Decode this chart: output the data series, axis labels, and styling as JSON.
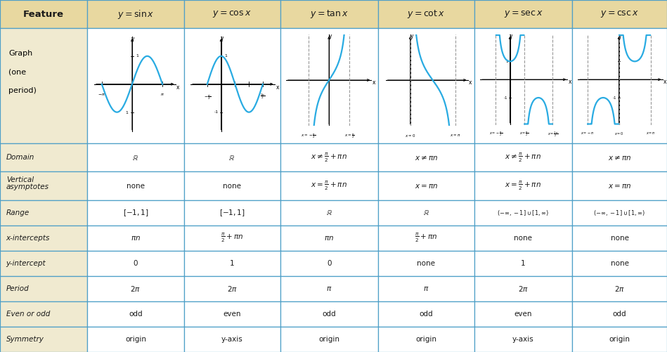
{
  "col_headers": [
    "Feature",
    "y = sin x",
    "y = cos x",
    "y = tan x",
    "y = cot x",
    "y = sec x",
    "y = csc x"
  ],
  "row_labels": [
    "Graph\n(one\nperiod)",
    "Domain",
    "Vertical\nasymptotes",
    "Range",
    "x-intercepts",
    "y-intercept",
    "Period",
    "Even or odd",
    "Symmetry"
  ],
  "domain_data": [
    "\\mathbb{R}",
    "\\mathbb{R}",
    "x \\neq \\frac{\\pi}{2} + \\pi n",
    "x \\neq \\pi n",
    "x \\neq \\frac{\\pi}{2} + \\pi n",
    "x \\neq \\pi n"
  ],
  "vert_asym_data": [
    "none",
    "none",
    "x = \\frac{\\pi}{2} + \\pi n",
    "x = \\pi n",
    "x = \\frac{\\pi}{2} + \\pi n",
    "x = \\pi n"
  ],
  "range_data": [
    "[-1, 1]",
    "[-1, 1]",
    "\\mathbb{R}",
    "\\mathbb{R}",
    "(-\\infty, -1] \\cup [1, \\infty)",
    "(-\\infty, -1] \\cup [1, \\infty)"
  ],
  "xint_data": [
    "\\pi n",
    "\\frac{\\pi}{2} + \\pi n",
    "\\pi n",
    "\\frac{\\pi}{2} + \\pi n",
    "none",
    "none"
  ],
  "yint_data": [
    "0",
    "1",
    "0",
    "none",
    "1",
    "none"
  ],
  "period_data": [
    "2\\pi",
    "2\\pi",
    "\\pi",
    "\\pi",
    "2\\pi",
    "2\\pi"
  ],
  "evenodd_data": [
    "odd",
    "even",
    "odd",
    "odd",
    "even",
    "odd"
  ],
  "symmetry_data": [
    "origin",
    "y-axis",
    "origin",
    "origin",
    "y-axis",
    "origin"
  ],
  "bg_header": "#e8d8a0",
  "bg_feature_col": "#f0ead0",
  "bg_white": "#ffffff",
  "border_color": "#4fa0c8",
  "curve_color": "#29abe2",
  "asym_color": "#999999",
  "text_dark": "#1a1a1a"
}
